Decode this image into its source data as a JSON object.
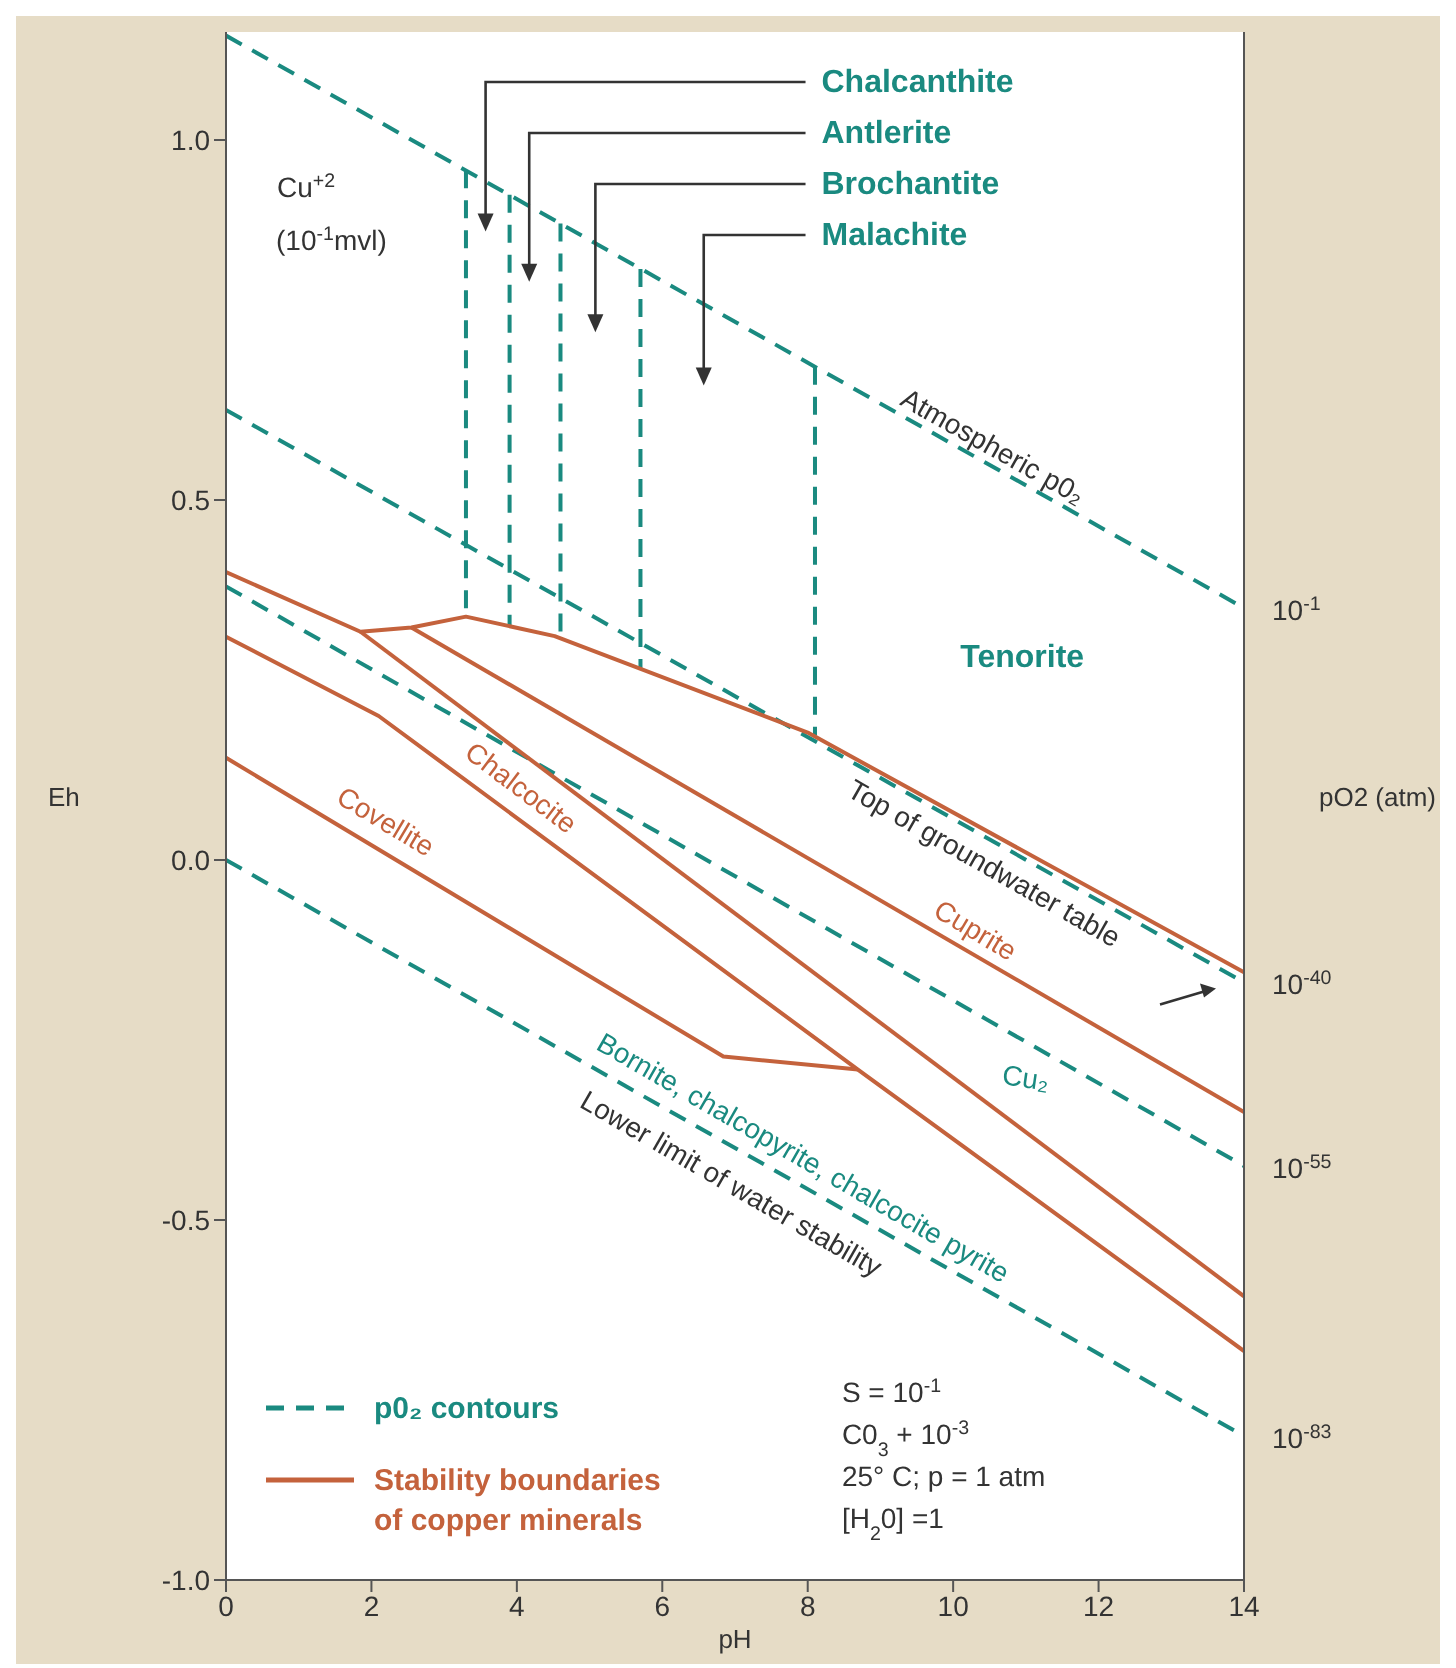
{
  "chart_data": {
    "type": "line",
    "xlabel": "pH",
    "ylabel": "Eh",
    "xlim": [
      0,
      14
    ],
    "xticks": [
      0,
      2,
      4,
      6,
      8,
      10,
      12,
      14
    ],
    "ylim": [
      -1,
      1.15
    ],
    "yticks": [
      {
        "value": -1,
        "label": "-1.0"
      },
      -0.5,
      {
        "value": 0,
        "label": "0.0"
      },
      0.5,
      {
        "value": 1,
        "label": "1.0"
      }
    ],
    "legend": "bottom left",
    "series": [
      {
        "name": "p0₂ contours",
        "color": "#1a8a80",
        "line_style": "dashed",
        "x": [
          0,
          14
        ],
        "values": [
          1.145,
          0.35
        ]
      },
      {
        "color": "#1a8a80",
        "line_style": "dashed",
        "x": [
          0,
          14
        ],
        "values": [
          0.625,
          -0.17
        ]
      },
      {
        "color": "#1a8a80",
        "line_style": "dashed",
        "x": [
          0,
          14
        ],
        "values": [
          0.38,
          -0.425
        ]
      },
      {
        "color": "#1a8a80",
        "line_style": "dashed",
        "x": [
          0,
          14
        ],
        "values": [
          0,
          -0.8
        ]
      },
      {
        "color": "#1a8a80",
        "line_style": "dashed",
        "x": [
          3.3,
          3.3
        ],
        "values": [
          0.958,
          0.338
        ]
      },
      {
        "color": "#1a8a80",
        "line_style": "dashed",
        "x": [
          3.9,
          3.9
        ],
        "values": [
          0.924,
          0.325
        ]
      },
      {
        "color": "#1a8a80",
        "line_style": "dashed",
        "x": [
          4.6,
          4.6
        ],
        "values": [
          0.884,
          0.308
        ]
      },
      {
        "color": "#1a8a80",
        "line_style": "dashed",
        "x": [
          5.7,
          5.7
        ],
        "values": [
          0.821,
          0.266
        ]
      },
      {
        "color": "#1a8a80",
        "line_style": "dashed",
        "x": [
          8.1,
          8.1
        ],
        "values": [
          0.685,
          0.173
        ]
      },
      {
        "name": "Stability boundaries of copper minerals",
        "color": "#c4623c",
        "line_style": "solid",
        "x": [
          0,
          1.85,
          2.55,
          3.3,
          4.52,
          8.0,
          14
        ],
        "values": [
          0.4,
          0.317,
          0.323,
          0.338,
          0.311,
          0.177,
          -0.156
        ]
      },
      {
        "color": "#c4623c",
        "line_style": "solid",
        "x": [
          2.55,
          14
        ],
        "values": [
          0.323,
          -0.35
        ]
      },
      {
        "color": "#c4623c",
        "line_style": "solid",
        "x": [
          1.85,
          14
        ],
        "values": [
          0.317,
          -0.606
        ]
      },
      {
        "color": "#c4623c",
        "line_style": "solid",
        "x": [
          0,
          2.1,
          8.69,
          14
        ],
        "values": [
          0.31,
          0.2,
          -0.291,
          -0.682
        ]
      },
      {
        "color": "#c4623c",
        "line_style": "solid",
        "x": [
          0,
          6.84,
          8.69
        ],
        "values": [
          0.142,
          -0.273,
          -0.291
        ]
      }
    ],
    "annotations": [
      "Chalcanthite",
      "Antlerite",
      "Brochantite",
      "Malachite",
      "Cu$^{+2}$",
      "(10$^{-1}$mvl)",
      "Atmospheric p0₂",
      "Tenorite",
      "Top of groundwater table",
      "Cuprite",
      "Chalcocite",
      "Covellite",
      "Cu₂",
      "Bornite, chalcopyrite, chalcocite pyrite",
      "Lower limit of water stability",
      "S = 10$^{-1}$",
      "C0$_{3}$ + 10$^{-3}$",
      "25° C; p = 1 atm",
      "[H$_{2}$0] =1",
      "10$^{-1}$",
      "10$^{-40}$",
      "10$^{-55}$",
      "10$^{-83}$",
      "pO2 (atm)"
    ]
  }
}
